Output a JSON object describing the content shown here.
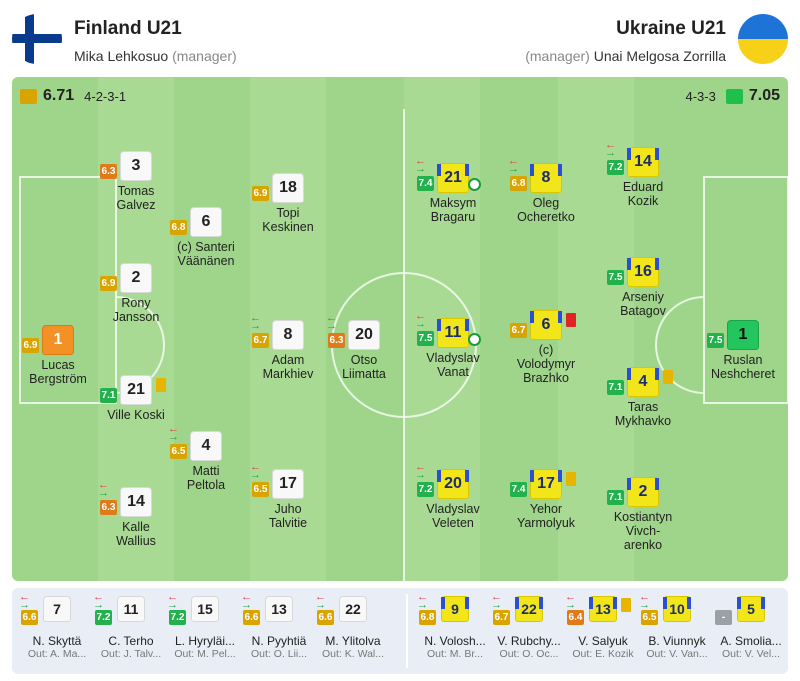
{
  "colors": {
    "excellent": "#1fbf4c",
    "good": "#22b14c",
    "average": "#d9a300",
    "poor": "#e07b1a",
    "na": "#9aa0a6"
  },
  "home": {
    "name": "Finland U21",
    "manager": "Mika Lehkosuo",
    "manager_role": "(manager)",
    "rating": "6.71",
    "formation": "4-2-3-1",
    "players": [
      {
        "number": "1",
        "name": "Lucas\nBergström",
        "rating": "6.9",
        "kit": "orange"
      },
      {
        "number": "3",
        "name": "Tomas\nGalvez",
        "rating": "6.3",
        "kit": "white"
      },
      {
        "number": "2",
        "name": "Rony\nJansson",
        "rating": "6.9",
        "kit": "white"
      },
      {
        "number": "21",
        "name": "Ville Koski",
        "rating": "7.1",
        "kit": "white",
        "card": "yellow"
      },
      {
        "number": "14",
        "name": "Kalle\nWallius",
        "rating": "6.3",
        "kit": "white",
        "sub": true
      },
      {
        "number": "6",
        "name": "(c) Santeri\nVäänänen",
        "rating": "6.8",
        "kit": "white"
      },
      {
        "number": "4",
        "name": "Matti\nPeltola",
        "rating": "6.5",
        "kit": "white",
        "sub": true
      },
      {
        "number": "18",
        "name": "Topi\nKeskinen",
        "rating": "6.9",
        "kit": "white"
      },
      {
        "number": "8",
        "name": "Adam\nMarkhiev",
        "rating": "6.7",
        "kit": "white",
        "sub": true
      },
      {
        "number": "17",
        "name": "Juho\nTalvitie",
        "rating": "6.5",
        "kit": "white",
        "sub": true
      },
      {
        "number": "20",
        "name": "Otso\nLiimatta",
        "rating": "6.3",
        "kit": "white",
        "sub": true
      }
    ],
    "bench": [
      {
        "number": "7",
        "name": "N. Skyttä",
        "out": "Out: A. Ma...",
        "rating": "6.6"
      },
      {
        "number": "11",
        "name": "C. Terho",
        "out": "Out: J. Talv...",
        "rating": "7.2"
      },
      {
        "number": "15",
        "name": "L. Hyryläi...",
        "out": "Out: M. Pel...",
        "rating": "7.2"
      },
      {
        "number": "13",
        "name": "N. Pyyhtiä",
        "out": "Out: O. Lii...",
        "rating": "6.6"
      },
      {
        "number": "22",
        "name": "M. Ylitolva",
        "out": "Out: K. Wal...",
        "rating": "6.6"
      }
    ]
  },
  "away": {
    "name": "Ukraine U21",
    "manager": "Unai Melgosa Zorrilla",
    "manager_role": "(manager)",
    "rating": "7.05",
    "formation": "4-3-3",
    "players": [
      {
        "number": "1",
        "name": "Ruslan\nNeshcheret",
        "rating": "7.5",
        "kit": "green"
      },
      {
        "number": "14",
        "name": "Eduard\nKozik",
        "rating": "7.2",
        "kit": "yellow",
        "sub": true
      },
      {
        "number": "16",
        "name": "Arseniy\nBatagov",
        "rating": "7.5",
        "kit": "yellow"
      },
      {
        "number": "4",
        "name": "Taras\nMykhavko",
        "rating": "7.1",
        "kit": "yellow",
        "card": "yellow"
      },
      {
        "number": "2",
        "name": "Kostiantyn\nVivch-\narenko",
        "rating": "7.1",
        "kit": "yellow"
      },
      {
        "number": "8",
        "name": "Oleg\nOcheretko",
        "rating": "6.8",
        "kit": "yellow",
        "sub": true
      },
      {
        "number": "6",
        "name": "(c)\nVolodymyr\nBrazhko",
        "rating": "6.7",
        "kit": "yellow",
        "card": "red"
      },
      {
        "number": "17",
        "name": "Yehor\nYarmolyuk",
        "rating": "7.4",
        "kit": "yellow",
        "card": "yellow"
      },
      {
        "number": "21",
        "name": "Maksym\nBragaru",
        "rating": "7.4",
        "kit": "yellow",
        "sub": true,
        "goal": true
      },
      {
        "number": "11",
        "name": "Vladyslav\nVanat",
        "rating": "7.5",
        "kit": "yellow",
        "sub": true,
        "goal": true
      },
      {
        "number": "20",
        "name": "Vladyslav\nVeleten",
        "rating": "7.2",
        "kit": "yellow",
        "sub": true
      }
    ],
    "bench": [
      {
        "number": "9",
        "name": "N. Volosh...",
        "out": "Out: M. Br...",
        "rating": "6.8"
      },
      {
        "number": "22",
        "name": "V. Rubchy...",
        "out": "Out: O. Oc...",
        "rating": "6.7"
      },
      {
        "number": "13",
        "name": "V. Salyuk",
        "out": "Out: E. Kozik",
        "rating": "6.4",
        "card": "yellow"
      },
      {
        "number": "10",
        "name": "B. Viunnyk",
        "out": "Out: V. Van...",
        "rating": "6.5"
      },
      {
        "number": "5",
        "name": "A. Smolia...",
        "out": "Out: V. Vel...",
        "rating": "-"
      }
    ]
  }
}
